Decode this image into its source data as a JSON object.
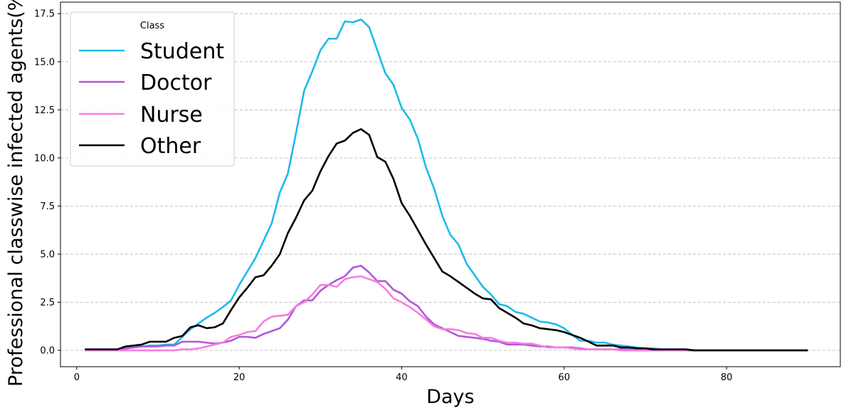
{
  "chart_data": {
    "type": "line",
    "title": "",
    "xlabel": "Days",
    "ylabel": "Professional classwise infected agents(%)",
    "xlim": [
      -2,
      94
    ],
    "ylim": [
      -0.85,
      18.1
    ],
    "xticks": [
      0,
      20,
      40,
      60,
      80
    ],
    "xtick_labels": [
      "0",
      "20",
      "40",
      "60",
      "80"
    ],
    "yticks": [
      0,
      2.5,
      5,
      7.5,
      10,
      12.5,
      15,
      17.5
    ],
    "ytick_labels": [
      "0.0",
      "2.5",
      "5.0",
      "7.5",
      "10.0",
      "12.5",
      "15.0",
      "17.5"
    ],
    "grid": "y-dashed",
    "legend": {
      "title": "Class",
      "position": "top-left"
    },
    "x": [
      1,
      2,
      3,
      4,
      5,
      6,
      7,
      8,
      9,
      10,
      11,
      12,
      13,
      14,
      15,
      16,
      17,
      18,
      19,
      20,
      21,
      22,
      23,
      24,
      25,
      26,
      27,
      28,
      29,
      30,
      31,
      32,
      33,
      34,
      35,
      36,
      37,
      38,
      39,
      40,
      41,
      42,
      43,
      44,
      45,
      46,
      47,
      48,
      49,
      50,
      51,
      52,
      53,
      54,
      55,
      56,
      57,
      58,
      59,
      60,
      61,
      62,
      63,
      64,
      65,
      66,
      67,
      68,
      69,
      70,
      71,
      72,
      73,
      74,
      75,
      76,
      77,
      78,
      79,
      80,
      81,
      82,
      83,
      84,
      85,
      86,
      87,
      88,
      89,
      90
    ],
    "series": [
      {
        "name": "Student",
        "color": "#1ebaec",
        "values": [
          0.05,
          0.05,
          0.05,
          0.05,
          0.05,
          0.1,
          0.15,
          0.2,
          0.25,
          0.25,
          0.3,
          0.3,
          0.7,
          1.1,
          1.4,
          1.7,
          1.95,
          2.25,
          2.6,
          3.4,
          4.1,
          4.8,
          5.7,
          6.6,
          8.2,
          9.2,
          11.3,
          13.5,
          14.5,
          15.6,
          16.2,
          16.2,
          17.1,
          17.05,
          17.2,
          16.8,
          15.6,
          14.4,
          13.8,
          12.6,
          12.0,
          11.0,
          9.5,
          8.4,
          7.0,
          6.0,
          5.5,
          4.5,
          3.9,
          3.3,
          2.9,
          2.4,
          2.3,
          2.0,
          1.9,
          1.7,
          1.5,
          1.45,
          1.35,
          1.15,
          0.8,
          0.5,
          0.5,
          0.4,
          0.4,
          0.3,
          0.25,
          0.2,
          0.15,
          0.1,
          0.1,
          0.05,
          0.05,
          0.05,
          0.05,
          0.0,
          0.0,
          0.0,
          0.0,
          0.0,
          0.0,
          0.0,
          0.0,
          0.0,
          0.0,
          0.0,
          0.0,
          0.0,
          0.0,
          0.0
        ]
      },
      {
        "name": "Doctor",
        "color": "#b157d9",
        "values": [
          0.0,
          0.0,
          0.0,
          0.0,
          0.0,
          0.1,
          0.15,
          0.2,
          0.2,
          0.2,
          0.25,
          0.25,
          0.45,
          0.45,
          0.45,
          0.4,
          0.35,
          0.4,
          0.5,
          0.7,
          0.7,
          0.65,
          0.85,
          1.0,
          1.15,
          1.6,
          2.3,
          2.6,
          2.6,
          3.1,
          3.4,
          3.65,
          3.85,
          4.3,
          4.4,
          4.05,
          3.6,
          3.6,
          3.15,
          2.95,
          2.55,
          2.3,
          1.75,
          1.35,
          1.15,
          0.95,
          0.75,
          0.7,
          0.65,
          0.6,
          0.5,
          0.45,
          0.3,
          0.3,
          0.3,
          0.25,
          0.2,
          0.2,
          0.15,
          0.15,
          0.15,
          0.1,
          0.05,
          0.05,
          0.05,
          0.05,
          0.05,
          0.05,
          0.0,
          0.0,
          0.0,
          0.0,
          0.0,
          0.0,
          0.0,
          0.0,
          0.0,
          0.0,
          0.0,
          0.0,
          0.0,
          0.0,
          0.0,
          0.0,
          0.0,
          0.0,
          0.0,
          0.0,
          0.0,
          0.0
        ]
      },
      {
        "name": "Nurse",
        "color": "#f57fde",
        "values": [
          0.0,
          0.0,
          0.0,
          0.0,
          0.0,
          0.0,
          0.0,
          0.0,
          0.0,
          0.0,
          0.0,
          0.0,
          0.05,
          0.05,
          0.1,
          0.2,
          0.3,
          0.4,
          0.7,
          0.8,
          0.95,
          1.0,
          1.5,
          1.75,
          1.8,
          1.85,
          2.3,
          2.5,
          2.9,
          3.4,
          3.4,
          3.3,
          3.7,
          3.8,
          3.85,
          3.7,
          3.55,
          3.2,
          2.7,
          2.5,
          2.25,
          1.95,
          1.6,
          1.25,
          1.1,
          1.1,
          1.05,
          0.9,
          0.85,
          0.65,
          0.65,
          0.5,
          0.4,
          0.4,
          0.35,
          0.35,
          0.25,
          0.15,
          0.15,
          0.15,
          0.1,
          0.05,
          0.05,
          0.05,
          0.05,
          0.05,
          0.0,
          0.0,
          0.0,
          0.0,
          0.0,
          0.0,
          0.0,
          0.0,
          0.0,
          0.0,
          0.0,
          0.0,
          0.0,
          0.0,
          0.0,
          0.0,
          0.0,
          0.0,
          0.0,
          0.0,
          0.0,
          0.0,
          0.0,
          0.0
        ]
      },
      {
        "name": "Other",
        "color": "#000000",
        "values": [
          0.05,
          0.05,
          0.05,
          0.05,
          0.05,
          0.2,
          0.25,
          0.3,
          0.45,
          0.45,
          0.45,
          0.65,
          0.75,
          1.2,
          1.3,
          1.15,
          1.2,
          1.4,
          2.1,
          2.75,
          3.25,
          3.8,
          3.9,
          4.4,
          5.0,
          6.1,
          6.9,
          7.8,
          8.3,
          9.3,
          10.1,
          10.75,
          10.9,
          11.3,
          11.5,
          11.2,
          10.05,
          9.8,
          8.9,
          7.65,
          7.0,
          6.25,
          5.5,
          4.8,
          4.1,
          3.85,
          3.55,
          3.25,
          2.95,
          2.7,
          2.65,
          2.2,
          1.95,
          1.7,
          1.4,
          1.3,
          1.15,
          1.1,
          1.05,
          0.95,
          0.8,
          0.65,
          0.45,
          0.25,
          0.25,
          0.25,
          0.15,
          0.15,
          0.1,
          0.1,
          0.05,
          0.05,
          0.05,
          0.05,
          0.05,
          0.0,
          0.0,
          0.0,
          0.0,
          0.0,
          0.0,
          0.0,
          0.0,
          0.0,
          0.0,
          0.0,
          0.0,
          0.0,
          0.0,
          0.0
        ]
      }
    ]
  }
}
